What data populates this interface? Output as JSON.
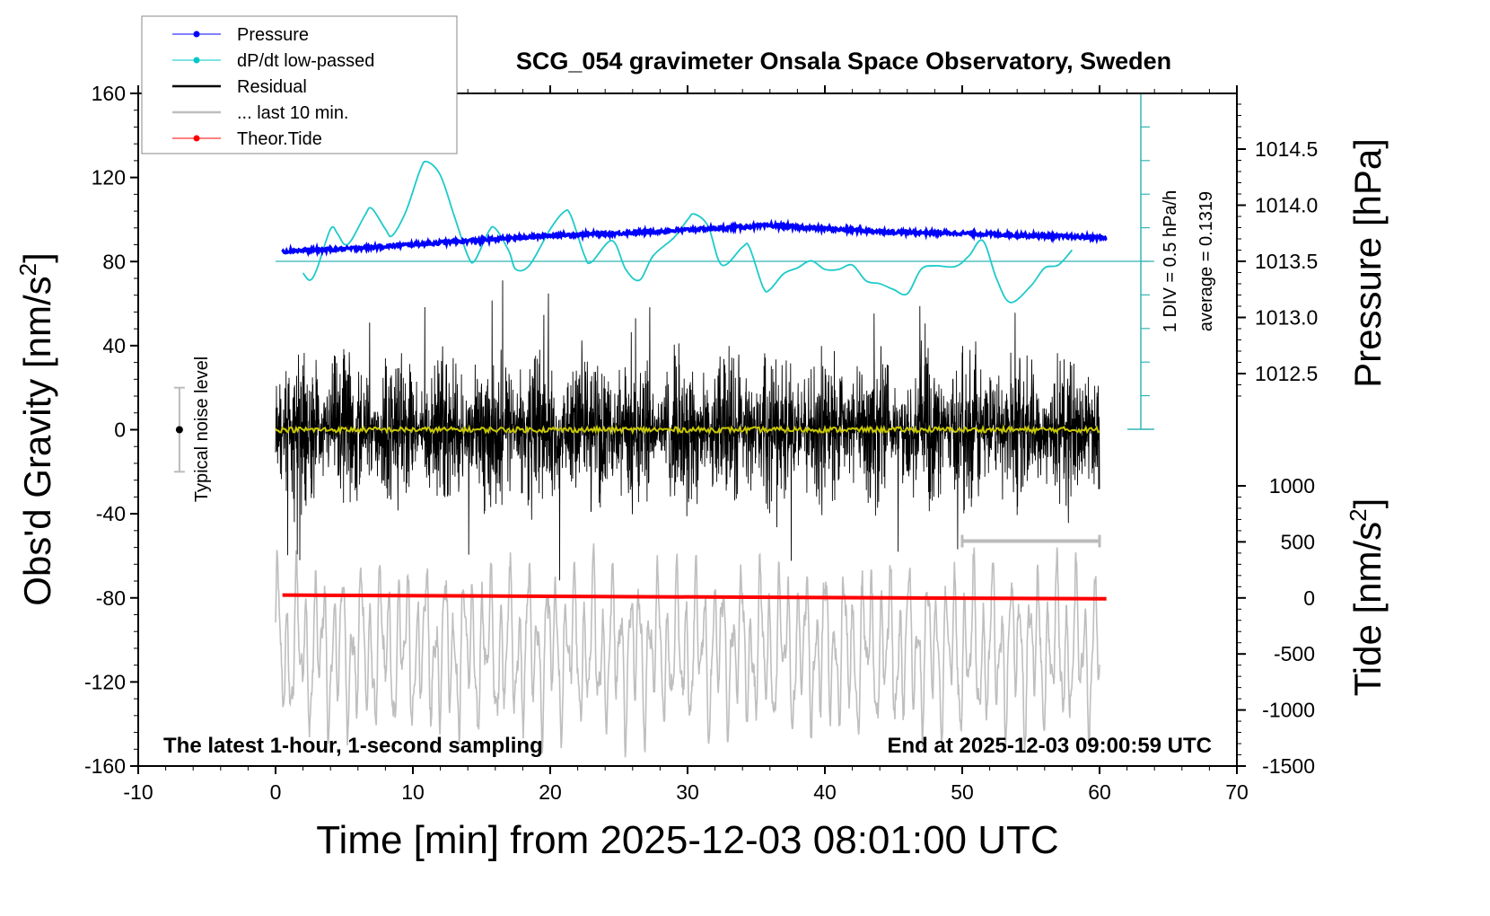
{
  "chart_data": {
    "type": "line",
    "title": "SCG_054 gravimeter Onsala Space Observatory, Sweden",
    "xlabel": "Time [min] from 2025-12-03 08:01:00 UTC",
    "ylabel_left": "Obs'd Gravity [nm/s",
    "ylabel_left_sup": "2",
    "ylabel_left_end": "]",
    "ylabel_right_pressure": "Pressure [hPa]",
    "ylabel_right_tide": "Tide [nm/s",
    "ylabel_right_tide_sup": "2",
    "ylabel_right_tide_end": "]",
    "xlim": [
      -10,
      70
    ],
    "ylim_gravity": [
      -160,
      160
    ],
    "ylim_pressure_visible": [
      1012.5,
      1014.5
    ],
    "ylim_tide": [
      -1500,
      1000
    ],
    "x_ticks": [
      "-10",
      "0",
      "10",
      "20",
      "30",
      "40",
      "50",
      "60",
      "70"
    ],
    "y_ticks_gravity": [
      "160",
      "120",
      "80",
      "40",
      "0",
      "-40",
      "-80",
      "-120",
      "-160"
    ],
    "y_ticks_pressure": [
      "1014.5",
      "1014.0",
      "1013.5",
      "1013.0",
      "1012.5"
    ],
    "y_ticks_tide": [
      "1000",
      "500",
      "0",
      "-500",
      "-1000",
      "-1500"
    ],
    "legend": {
      "placement": "top-left",
      "entries": [
        {
          "label": "Pressure",
          "color": "#0000ff",
          "marker": true
        },
        {
          "label": "dP/dt low-passed",
          "color": "#00c8c8",
          "marker": true
        },
        {
          "label": "Residual",
          "color": "#000000",
          "marker": false
        },
        {
          "label": "... last 10 min.",
          "color": "#bebebe",
          "marker": false
        },
        {
          "label": "Theor.Tide",
          "color": "#ff0000",
          "marker": true
        }
      ]
    },
    "annotations": {
      "bottom_left": "The latest 1-hour, 1-second sampling",
      "bottom_right": "End at 2025-12-03 09:00:59 UTC",
      "noise_label": "Typical noise level",
      "dpdt_scale": "1 DIV = 0.5 hPa/h",
      "dpdt_average": "average = 0.1319"
    },
    "noise_level": {
      "x": -7,
      "center": 0,
      "half_range": 20
    },
    "last10_bracket": {
      "x_start": 50,
      "x_end": 60,
      "y": -53
    },
    "series": {
      "pressure_hpa": [
        [
          0.5,
          1013.59
        ],
        [
          5,
          1013.61
        ],
        [
          10,
          1013.65
        ],
        [
          15,
          1013.69
        ],
        [
          20,
          1013.73
        ],
        [
          25,
          1013.75
        ],
        [
          30,
          1013.78
        ],
        [
          33,
          1013.8
        ],
        [
          36,
          1013.82
        ],
        [
          40,
          1013.79
        ],
        [
          45,
          1013.76
        ],
        [
          50,
          1013.75
        ],
        [
          55,
          1013.73
        ],
        [
          60.5,
          1013.71
        ]
      ],
      "dpdt_hpa_per_h": [
        [
          2,
          -0.03
        ],
        [
          2.5,
          -0.13
        ],
        [
          3,
          0.02
        ],
        [
          4,
          0.58
        ],
        [
          4.5,
          0.52
        ],
        [
          5,
          0.37
        ],
        [
          5.5,
          0.42
        ],
        [
          6.5,
          0.77
        ],
        [
          7,
          0.87
        ],
        [
          8,
          0.58
        ],
        [
          8.5,
          0.49
        ],
        [
          9.5,
          0.83
        ],
        [
          10.5,
          1.39
        ],
        [
          11,
          1.52
        ],
        [
          12,
          1.33
        ],
        [
          13,
          0.77
        ],
        [
          14,
          0.21
        ],
        [
          14.5,
          0.14
        ],
        [
          15.5,
          0.54
        ],
        [
          16,
          0.59
        ],
        [
          17,
          0.27
        ],
        [
          17.5,
          0.02
        ],
        [
          18.5,
          0.08
        ],
        [
          20,
          0.58
        ],
        [
          21,
          0.82
        ],
        [
          21.5,
          0.77
        ],
        [
          22.5,
          0.21
        ],
        [
          23,
          0.12
        ],
        [
          24.5,
          0.42
        ],
        [
          25.5,
          0.02
        ],
        [
          26.5,
          -0.13
        ],
        [
          27.5,
          0.21
        ],
        [
          29,
          0.46
        ],
        [
          30,
          0.71
        ],
        [
          30.5,
          0.79
        ],
        [
          31.5,
          0.62
        ],
        [
          32.5,
          0.08
        ],
        [
          34,
          0.33
        ],
        [
          34.5,
          0.33
        ],
        [
          35.5,
          -0.23
        ],
        [
          36,
          -0.26
        ],
        [
          37,
          -0.04
        ],
        [
          38,
          0.04
        ],
        [
          39,
          0.14
        ],
        [
          40,
          0.02
        ],
        [
          41,
          0.02
        ],
        [
          42,
          0.08
        ],
        [
          43,
          -0.14
        ],
        [
          44,
          -0.18
        ],
        [
          45,
          -0.26
        ],
        [
          46,
          -0.32
        ],
        [
          47,
          0.02
        ],
        [
          48,
          0.07
        ],
        [
          49.5,
          0.06
        ],
        [
          50.5,
          0.21
        ],
        [
          51.5,
          0.42
        ],
        [
          52.5,
          -0.11
        ],
        [
          53.5,
          -0.44
        ],
        [
          55,
          -0.21
        ],
        [
          56,
          0.04
        ],
        [
          57,
          0.08
        ],
        [
          58,
          0.29
        ]
      ],
      "dpdt_average": 0.1319,
      "residual": {
        "x_range": [
          0,
          60
        ],
        "mean": 0,
        "typical_amplitude": 35,
        "max_spike": 72
      },
      "residual_smoothed_mean": 0,
      "last10_min": {
        "x_range": [
          0,
          60
        ],
        "center": -105,
        "amplitude": 40
      },
      "theor_tide_nm_s2": [
        [
          0.5,
          25
        ],
        [
          60.5,
          -8
        ]
      ]
    }
  }
}
